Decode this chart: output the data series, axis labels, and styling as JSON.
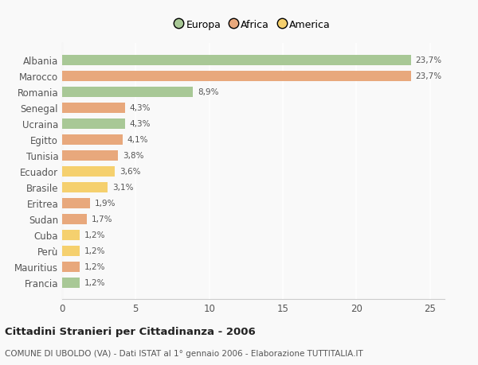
{
  "categories": [
    "Albania",
    "Marocco",
    "Romania",
    "Senegal",
    "Ucraina",
    "Egitto",
    "Tunisia",
    "Ecuador",
    "Brasile",
    "Eritrea",
    "Sudan",
    "Cuba",
    "Perù",
    "Mauritius",
    "Francia"
  ],
  "values": [
    23.7,
    23.7,
    8.9,
    4.3,
    4.3,
    4.1,
    3.8,
    3.6,
    3.1,
    1.9,
    1.7,
    1.2,
    1.2,
    1.2,
    1.2
  ],
  "continents": [
    "Europa",
    "Africa",
    "Europa",
    "Africa",
    "Europa",
    "Africa",
    "Africa",
    "America",
    "America",
    "Africa",
    "Africa",
    "America",
    "America",
    "Africa",
    "Europa"
  ],
  "colors": {
    "Europa": "#a8c896",
    "Africa": "#e8a87c",
    "America": "#f5d06e"
  },
  "legend_labels": [
    "Europa",
    "Africa",
    "America"
  ],
  "title": "Cittadini Stranieri per Cittadinanza - 2006",
  "subtitle": "COMUNE DI UBOLDO (VA) - Dati ISTAT al 1° gennaio 2006 - Elaborazione TUTTITALIA.IT",
  "xlim": [
    0,
    26
  ],
  "xticks": [
    0,
    5,
    10,
    15,
    20,
    25
  ],
  "bar_height": 0.65,
  "background_color": "#f9f9f9",
  "grid_color": "#ffffff"
}
